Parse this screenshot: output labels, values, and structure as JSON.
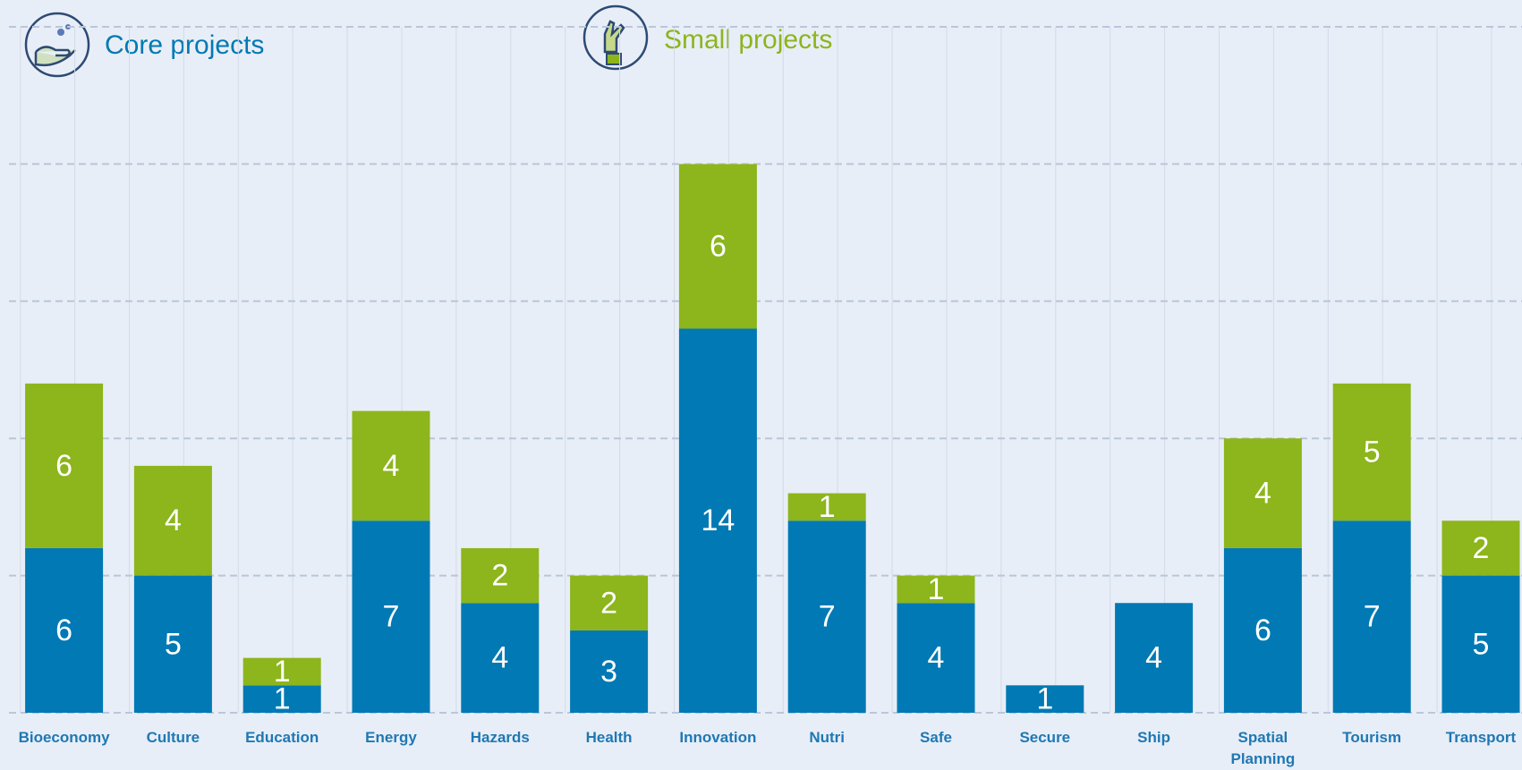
{
  "chart_data": {
    "type": "stacked_bar",
    "categories": [
      "Bioeconomy",
      "Culture",
      "Education",
      "Energy",
      "Hazards",
      "Health",
      "Innovation",
      "Nutri",
      "Safe",
      "Secure",
      "Ship",
      "Spatial Planning",
      "Tourism",
      "Transport"
    ],
    "series": [
      {
        "name": "Core projects",
        "color": "#0079b4",
        "values": [
          6,
          5,
          1,
          7,
          4,
          3,
          14,
          7,
          4,
          1,
          4,
          6,
          7,
          5
        ]
      },
      {
        "name": "Small projects",
        "color": "#8db51c",
        "values": [
          6,
          4,
          1,
          4,
          2,
          2,
          6,
          1,
          1,
          null,
          null,
          4,
          5,
          2
        ]
      }
    ],
    "ylim": [
      0,
      25
    ],
    "yticks": [
      0,
      5,
      10,
      15,
      20,
      25
    ],
    "grid": true
  }
}
